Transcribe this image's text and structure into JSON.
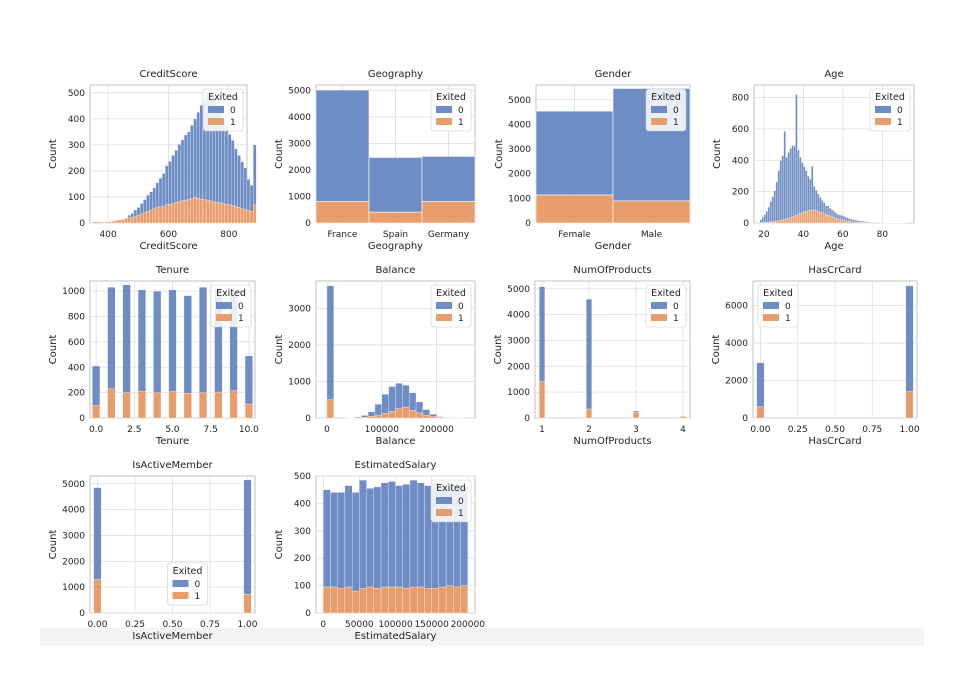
{
  "legend_title": "Exited",
  "legend_labels": [
    "0",
    "1"
  ],
  "colors": {
    "exited_0": "#5f81bf",
    "exited_1": "#e6925c",
    "grid": "#dedede",
    "frame": "#b3b3b3"
  },
  "chart_data": [
    {
      "type": "bar",
      "stacked": true,
      "title": "CreditScore",
      "xlabel": "CreditScore",
      "ylabel": "Count",
      "x_range": [
        340,
        860
      ],
      "bin_start": 350,
      "bin_width": 10.4,
      "ylim": [
        0,
        530
      ],
      "xticks": [
        400,
        600,
        800
      ],
      "yticks": [
        0,
        100,
        200,
        300,
        400,
        500
      ],
      "legend": "top-right",
      "series": [
        {
          "name": "0",
          "values": [
            0,
            0,
            0,
            0,
            0,
            0,
            0,
            0,
            0,
            0,
            0,
            10,
            15,
            25,
            30,
            40,
            50,
            62,
            70,
            80,
            95,
            110,
            125,
            150,
            165,
            185,
            200,
            220,
            235,
            250,
            260,
            280,
            300,
            330,
            360,
            380,
            410,
            390,
            400,
            370,
            350,
            320,
            300,
            270,
            250,
            220,
            200,
            180,
            160,
            120,
            100,
            230
          ]
        },
        {
          "name": "1",
          "values": [
            5,
            5,
            4,
            3,
            4,
            5,
            6,
            10,
            12,
            14,
            18,
            20,
            22,
            25,
            30,
            35,
            40,
            45,
            50,
            55,
            60,
            62,
            65,
            70,
            72,
            75,
            80,
            82,
            85,
            88,
            90,
            95,
            100,
            95,
            92,
            90,
            88,
            85,
            82,
            80,
            78,
            75,
            72,
            70,
            68,
            65,
            60,
            55,
            52,
            48,
            45,
            70
          ]
        }
      ]
    },
    {
      "type": "bar",
      "stacked": true,
      "title": "Geography",
      "xlabel": "Geography",
      "ylabel": "Count",
      "categories": [
        "France",
        "Spain",
        "Germany"
      ],
      "ylim": [
        0,
        5200
      ],
      "yticks": [
        0,
        1000,
        2000,
        3000,
        4000,
        5000
      ],
      "legend": "top-right",
      "series": [
        {
          "name": "0",
          "values": [
            4200,
            2060,
            1700
          ]
        },
        {
          "name": "1",
          "values": [
            810,
            410,
            810
          ]
        }
      ]
    },
    {
      "type": "bar",
      "stacked": true,
      "title": "Gender",
      "xlabel": "Gender",
      "ylabel": "Count",
      "categories": [
        "Female",
        "Male"
      ],
      "ylim": [
        0,
        5600
      ],
      "yticks": [
        0,
        1000,
        2000,
        3000,
        4000,
        5000
      ],
      "legend": "top-right",
      "series": [
        {
          "name": "0",
          "values": [
            3400,
            4560
          ]
        },
        {
          "name": "1",
          "values": [
            1140,
            900
          ]
        }
      ]
    },
    {
      "type": "bar",
      "stacked": true,
      "title": "Age",
      "xlabel": "Age",
      "ylabel": "Count",
      "x_range": [
        15,
        96
      ],
      "bin_start": 18,
      "bin_width": 1,
      "ylim": [
        0,
        880
      ],
      "xticks": [
        20,
        40,
        60,
        80
      ],
      "yticks": [
        0,
        200,
        400,
        600,
        800
      ],
      "legend": "top-right",
      "series": [
        {
          "name": "0",
          "values": [
            20,
            35,
            50,
            70,
            95,
            130,
            160,
            195,
            250,
            320,
            380,
            410,
            560,
            390,
            420,
            440,
            455,
            445,
            770,
            410,
            360,
            320,
            290,
            260,
            220,
            200,
            280,
            150,
            130,
            110,
            95,
            80,
            70,
            55,
            60,
            50,
            45,
            40,
            35,
            30,
            30,
            28,
            25,
            22,
            20,
            18,
            16,
            15,
            12,
            10,
            10,
            8,
            7,
            6,
            5,
            5,
            4,
            3,
            3,
            2,
            2,
            2,
            1,
            1,
            1,
            1,
            1,
            1,
            1,
            1,
            1,
            1,
            1,
            1
          ]
        },
        {
          "name": "1",
          "values": [
            2,
            3,
            4,
            5,
            6,
            7,
            8,
            10,
            12,
            15,
            18,
            20,
            25,
            28,
            30,
            35,
            40,
            45,
            50,
            55,
            60,
            65,
            70,
            75,
            78,
            80,
            82,
            85,
            80,
            75,
            70,
            65,
            60,
            55,
            50,
            45,
            40,
            35,
            30,
            25,
            22,
            20,
            18,
            15,
            12,
            10,
            8,
            7,
            6,
            5,
            4,
            3,
            3,
            2,
            2,
            1,
            1,
            1,
            1,
            1,
            1,
            0,
            0,
            0,
            0,
            0,
            0,
            0,
            0,
            0,
            0,
            0,
            0,
            0
          ]
        }
      ]
    },
    {
      "type": "bar",
      "stacked": true,
      "title": "Tenure",
      "xlabel": "Tenure",
      "ylabel": "Count",
      "x_range": [
        -0.4,
        10.4
      ],
      "bin_start": -0.25,
      "bin_width": 0.5,
      "ylim": [
        0,
        1080
      ],
      "bin_totals": [
        410,
        0,
        1030,
        0,
        1050,
        0,
        1010,
        0,
        1000,
        0,
        1010,
        0,
        965,
        0,
        1030,
        0,
        1025,
        0,
        985,
        0,
        490
      ],
      "xticks": [
        0.0,
        2.5,
        5.0,
        7.5,
        10.0
      ],
      "yticks": [
        0,
        200,
        400,
        600,
        800,
        1000
      ],
      "legend": "top-right",
      "series": [
        {
          "name": "0",
          "values": [
            310,
            0,
            800,
            0,
            850,
            0,
            800,
            0,
            800,
            0,
            800,
            0,
            770,
            0,
            830,
            0,
            820,
            0,
            770,
            0,
            380
          ]
        },
        {
          "name": "1",
          "values": [
            100,
            0,
            230,
            0,
            200,
            0,
            210,
            0,
            200,
            0,
            210,
            0,
            195,
            0,
            200,
            0,
            205,
            0,
            215,
            0,
            110
          ]
        }
      ]
    },
    {
      "type": "bar",
      "stacked": true,
      "title": "Balance",
      "xlabel": "Balance",
      "ylabel": "Count",
      "x_range": [
        -20000,
        270000
      ],
      "bin_start": 0,
      "bin_width": 12500,
      "ylim": [
        0,
        3750
      ],
      "xticks": [
        0,
        100000,
        200000
      ],
      "xtick_labels": [
        "0",
        "100000",
        "200000"
      ],
      "yticks": [
        0,
        1000,
        2000,
        3000
      ],
      "legend": "top-right",
      "series": [
        {
          "name": "0",
          "values": [
            3120,
            0,
            0,
            5,
            20,
            50,
            120,
            300,
            520,
            680,
            690,
            600,
            480,
            300,
            150,
            60,
            20,
            10,
            2,
            1
          ]
        },
        {
          "name": "1",
          "values": [
            500,
            0,
            0,
            2,
            8,
            20,
            50,
            80,
            130,
            180,
            260,
            300,
            210,
            140,
            80,
            40,
            18,
            8,
            2,
            1
          ]
        }
      ]
    },
    {
      "type": "bar",
      "stacked": true,
      "title": "NumOfProducts",
      "xlabel": "NumOfProducts",
      "ylabel": "Count",
      "x_range": [
        0.85,
        4.15
      ],
      "bin_start": 1,
      "bin_width": 0.12,
      "ylim": [
        0,
        5300
      ],
      "bar_centers": [
        1,
        2,
        3,
        4
      ],
      "xticks": [
        1,
        2,
        3,
        4
      ],
      "yticks": [
        0,
        1000,
        2000,
        3000,
        4000,
        5000
      ],
      "legend": "top-right",
      "series": [
        {
          "name": "0",
          "values": [
            3670,
            4250,
            50,
            0
          ]
        },
        {
          "name": "1",
          "values": [
            1410,
            350,
            220,
            60
          ]
        }
      ]
    },
    {
      "type": "bar",
      "stacked": true,
      "title": "HasCrCard",
      "xlabel": "HasCrCard",
      "ylabel": "Count",
      "x_range": [
        -0.05,
        1.05
      ],
      "bin_start": 0,
      "bin_width": 0.05,
      "ylim": [
        0,
        7300
      ],
      "bar_centers": [
        0.0,
        1.0
      ],
      "xticks": [
        0.0,
        0.25,
        0.5,
        0.75,
        1.0
      ],
      "xtick_labels": [
        "0.00",
        "0.25",
        "0.50",
        "0.75",
        "1.00"
      ],
      "yticks": [
        0,
        2000,
        4000,
        6000
      ],
      "legend": "top-left",
      "series": [
        {
          "name": "0",
          "values": [
            2330,
            5630
          ]
        },
        {
          "name": "1",
          "values": [
            610,
            1420
          ]
        }
      ]
    },
    {
      "type": "bar",
      "stacked": true,
      "title": "IsActiveMember",
      "xlabel": "IsActiveMember",
      "ylabel": "Count",
      "x_range": [
        -0.05,
        1.05
      ],
      "bin_start": 0,
      "bin_width": 0.05,
      "ylim": [
        0,
        5300
      ],
      "bar_centers": [
        0.0,
        1.0
      ],
      "xticks": [
        0.0,
        0.25,
        0.5,
        0.75,
        1.0
      ],
      "xtick_labels": [
        "0.00",
        "0.25",
        "0.50",
        "0.75",
        "1.00"
      ],
      "yticks": [
        0,
        1000,
        2000,
        3000,
        4000,
        5000
      ],
      "legend": "lower-center",
      "series": [
        {
          "name": "0",
          "values": [
            3550,
            4420
          ]
        },
        {
          "name": "1",
          "values": [
            1300,
            730
          ]
        }
      ]
    },
    {
      "type": "bar",
      "stacked": true,
      "title": "EstimatedSalary",
      "xlabel": "EstimatedSalary",
      "ylabel": "Count",
      "x_range": [
        -10000,
        210000
      ],
      "bin_start": 0,
      "bin_width": 10000,
      "ylim": [
        0,
        500
      ],
      "xticks": [
        0,
        50000,
        100000,
        150000,
        200000
      ],
      "xtick_labels": [
        "0",
        "50000",
        "100000",
        "150000",
        "200000"
      ],
      "yticks": [
        0,
        100,
        200,
        300,
        400,
        500
      ],
      "legend": "top-right",
      "series": [
        {
          "name": "0",
          "values": [
            355,
            345,
            350,
            370,
            360,
            395,
            360,
            370,
            380,
            385,
            370,
            380,
            390,
            380,
            375,
            385,
            370,
            360,
            375,
            360
          ]
        },
        {
          "name": "1",
          "values": [
            95,
            95,
            90,
            95,
            80,
            90,
            95,
            90,
            95,
            95,
            95,
            90,
            95,
            95,
            90,
            90,
            95,
            100,
            95,
            100
          ]
        }
      ]
    }
  ]
}
